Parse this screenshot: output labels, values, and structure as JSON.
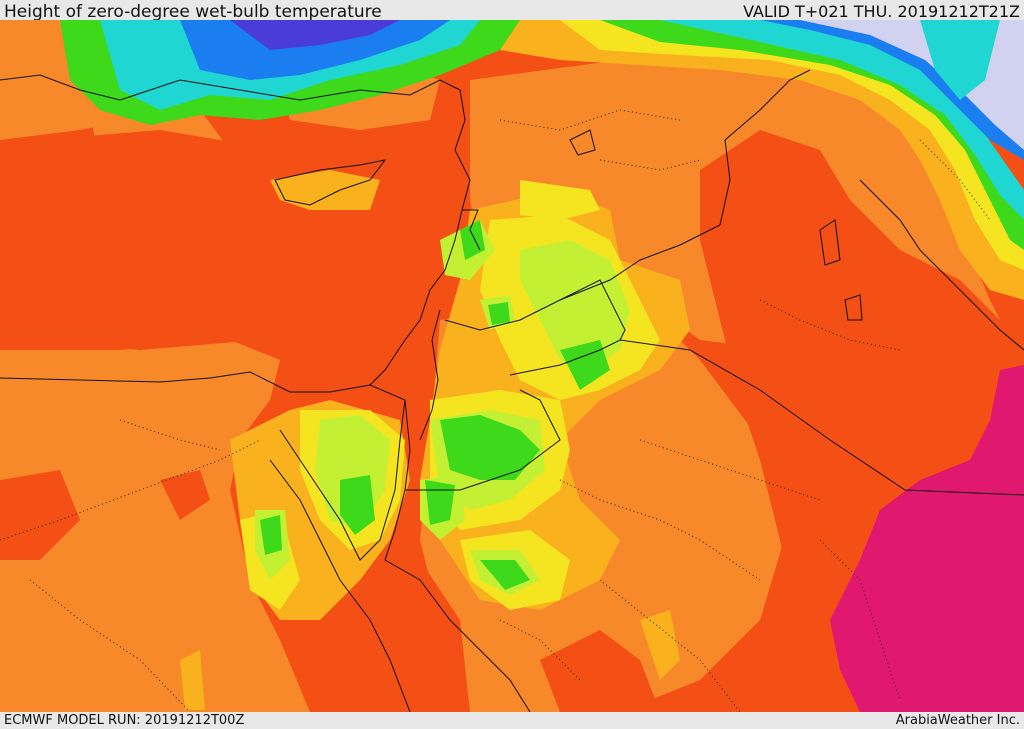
{
  "header": {
    "title": "Height of zero-degree wet-bulb temperature",
    "valid": "VALID T+021 THU. 20191212T21Z"
  },
  "footer": {
    "model_run": "ECMWF MODEL RUN: 20191212T00Z",
    "credit": "ArabiaWeather Inc."
  },
  "palette": {
    "deep_orange": "#f45016",
    "orange": "#f7892a",
    "amber": "#f9b21e",
    "yellow": "#f5e521",
    "lime": "#c4f034",
    "green": "#3ed91a",
    "cyan": "#1fd6d2",
    "blue": "#1a7df0",
    "violet": "#4a3cd8",
    "lavender": "#d1d2f0",
    "magenta": "#e0186f",
    "border": "#111111"
  }
}
